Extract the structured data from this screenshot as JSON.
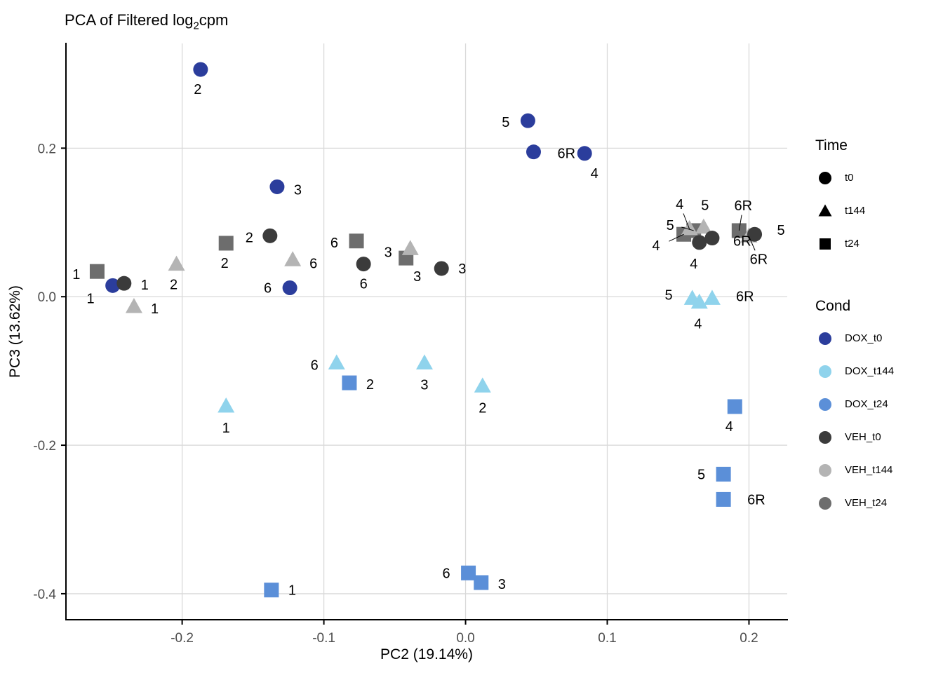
{
  "title_parts": {
    "prefix": "PCA of Filtered log",
    "sub": "2",
    "suffix": "cpm"
  },
  "colors": {
    "grid": "#d9d9d9",
    "axis": "#000000",
    "tick_text": "#4d4d4d",
    "label_text": "#000000",
    "dox_t0": "#2b3d9c",
    "dox_t144": "#8fd3ec",
    "dox_t24": "#5b8fd8",
    "veh_t0": "#3b3b3b",
    "veh_t144": "#b4b4b4",
    "veh_t24": "#6d6d6d"
  },
  "chart_data": {
    "type": "scatter",
    "title": "PCA of Filtered log2cpm",
    "xlabel": "PC2 (19.14%)",
    "ylabel": "PC3 (13.62%)",
    "xlim": [
      -0.282,
      0.227
    ],
    "ylim": [
      -0.435,
      0.341
    ],
    "x_ticks": [
      -0.2,
      -0.1,
      0.0,
      0.1,
      0.2
    ],
    "x_tick_labels": [
      "-0.2",
      "-0.1",
      "0.0",
      "0.1",
      "0.2"
    ],
    "y_ticks": [
      0.2,
      0.0,
      -0.2,
      -0.4
    ],
    "y_tick_labels": [
      "0.2",
      "0.0",
      "-0.2",
      "-0.4"
    ],
    "grid": true,
    "legend_position": "right",
    "series": [
      {
        "name": "DOX_t0",
        "shape": "circle",
        "color": "#2b3d9c",
        "points": [
          {
            "label": "2",
            "x": -0.187,
            "y": 0.306,
            "dx": -4,
            "dy": 28
          },
          {
            "label": "5",
            "x": 0.044,
            "y": 0.237,
            "dx": -26,
            "dy": 2
          },
          {
            "label": "6R",
            "x": 0.048,
            "y": 0.195,
            "dx": 34,
            "dy": 2
          },
          {
            "label": "4",
            "x": 0.084,
            "y": 0.193,
            "dx": 14,
            "dy": 28
          },
          {
            "label": "3",
            "x": -0.133,
            "y": 0.148,
            "dx": 24,
            "dy": 4
          },
          {
            "label": "6",
            "x": -0.124,
            "y": 0.012,
            "dx": -26,
            "dy": 0
          },
          {
            "label": "1",
            "x": -0.249,
            "y": 0.015,
            "dx": -26,
            "dy": 18
          }
        ]
      },
      {
        "name": "DOX_t144",
        "shape": "triangle",
        "color": "#8fd3ec",
        "points": [
          {
            "label": "5",
            "x": 0.16,
            "y": -0.003,
            "dx": -28,
            "dy": -6
          },
          {
            "label": "6R",
            "x": 0.174,
            "y": -0.003,
            "dx": 34,
            "dy": -4
          },
          {
            "label": "4",
            "x": 0.165,
            "y": -0.008,
            "dx": -2,
            "dy": 30
          },
          {
            "label": "6",
            "x": -0.091,
            "y": -0.09,
            "dx": -26,
            "dy": 2
          },
          {
            "label": "3",
            "x": -0.029,
            "y": -0.09,
            "dx": 0,
            "dy": 30
          },
          {
            "label": "2",
            "x": 0.012,
            "y": -0.121,
            "dx": 0,
            "dy": 30
          },
          {
            "label": "1",
            "x": -0.169,
            "y": -0.148,
            "dx": 0,
            "dy": 30
          }
        ]
      },
      {
        "name": "DOX_t24",
        "shape": "square",
        "color": "#5b8fd8",
        "points": [
          {
            "label": "2",
            "x": -0.082,
            "y": -0.116,
            "dx": 24,
            "dy": 2
          },
          {
            "label": "4",
            "x": 0.19,
            "y": -0.148,
            "dx": -8,
            "dy": 28
          },
          {
            "label": "5",
            "x": 0.182,
            "y": -0.239,
            "dx": -26,
            "dy": 0
          },
          {
            "label": "6R",
            "x": 0.182,
            "y": -0.273,
            "dx": 34,
            "dy": 0
          },
          {
            "label": "6",
            "x": 0.002,
            "y": -0.372,
            "dx": -26,
            "dy": 0
          },
          {
            "label": "3",
            "x": 0.011,
            "y": -0.385,
            "dx": 24,
            "dy": 2
          },
          {
            "label": "1",
            "x": -0.137,
            "y": -0.395,
            "dx": 24,
            "dy": 0
          }
        ]
      },
      {
        "name": "VEH_t24",
        "shape": "square",
        "color": "#6d6d6d",
        "points": [
          {
            "label": "1",
            "x": -0.26,
            "y": 0.034,
            "dx": -24,
            "dy": 4
          },
          {
            "label": "2",
            "x": -0.169,
            "y": 0.072,
            "dx": -2,
            "dy": 28
          },
          {
            "label": "6",
            "x": -0.077,
            "y": 0.075,
            "dx": -26,
            "dy": 2
          },
          {
            "label": "3",
            "x": -0.042,
            "y": 0.052,
            "dx": 16,
            "dy": 26
          },
          {
            "label": "4",
            "x": 0.154,
            "y": 0.084,
            "dx": -34,
            "dy": 16,
            "leader": true
          },
          {
            "label": "5",
            "x": 0.161,
            "y": 0.089,
            "dx": -28,
            "dy": -8,
            "leader": true
          },
          {
            "label": "6R",
            "x": 0.193,
            "y": 0.089,
            "dx": 6,
            "dy": -36,
            "leader": true
          }
        ]
      },
      {
        "name": "VEH_t144",
        "shape": "triangle",
        "color": "#b4b4b4",
        "points": [
          {
            "label": "1",
            "x": -0.234,
            "y": -0.014,
            "dx": 24,
            "dy": 2
          },
          {
            "label": "2",
            "x": -0.204,
            "y": 0.043,
            "dx": -4,
            "dy": 28
          },
          {
            "label": "6",
            "x": -0.122,
            "y": 0.049,
            "dx": 24,
            "dy": 4
          },
          {
            "label": "3",
            "x": -0.039,
            "y": 0.064,
            "dx": -26,
            "dy": 4
          },
          {
            "label": "4",
            "x": 0.158,
            "y": 0.091,
            "dx": -14,
            "dy": -36,
            "leader": true
          },
          {
            "label": "5",
            "x": 0.168,
            "y": 0.093,
            "dx": 2,
            "dy": -32
          },
          {
            "label": "6R",
            "x": 0.2,
            "y": 0.081,
            "dx": 14,
            "dy": 32,
            "leader": true
          }
        ]
      },
      {
        "name": "VEH_t0",
        "shape": "circle",
        "color": "#3b3b3b",
        "points": [
          {
            "label": "1",
            "x": -0.241,
            "y": 0.018,
            "dx": 24,
            "dy": 2
          },
          {
            "label": "2",
            "x": -0.138,
            "y": 0.082,
            "dx": -24,
            "dy": 2
          },
          {
            "label": "6",
            "x": -0.072,
            "y": 0.044,
            "dx": 0,
            "dy": 28
          },
          {
            "label": "3",
            "x": -0.017,
            "y": 0.038,
            "dx": 24,
            "dy": 0
          },
          {
            "label": "4",
            "x": 0.165,
            "y": 0.073,
            "dx": -8,
            "dy": 30
          },
          {
            "label": "6R",
            "x": 0.174,
            "y": 0.079,
            "dx": 30,
            "dy": 4
          },
          {
            "label": "5",
            "x": 0.204,
            "y": 0.084,
            "dx": 32,
            "dy": -6
          }
        ]
      }
    ]
  },
  "legend": {
    "time": {
      "title": "Time",
      "items": [
        {
          "label": "t0",
          "shape": "circle"
        },
        {
          "label": "t144",
          "shape": "triangle"
        },
        {
          "label": "t24",
          "shape": "square"
        }
      ]
    },
    "cond": {
      "title": "Cond",
      "items": [
        {
          "label": "DOX_t0",
          "color": "#2b3d9c"
        },
        {
          "label": "DOX_t144",
          "color": "#8fd3ec"
        },
        {
          "label": "DOX_t24",
          "color": "#5b8fd8"
        },
        {
          "label": "VEH_t0",
          "color": "#3b3b3b"
        },
        {
          "label": "VEH_t144",
          "color": "#b4b4b4"
        },
        {
          "label": "VEH_t24",
          "color": "#6d6d6d"
        }
      ]
    }
  }
}
